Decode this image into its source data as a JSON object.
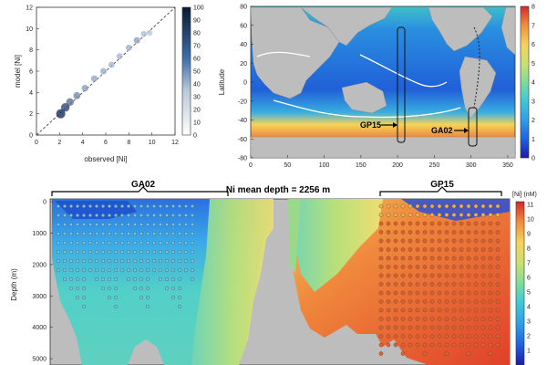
{
  "chart_data": [
    {
      "type": "scatter",
      "title": "",
      "xlabel": "observed [Ni]",
      "ylabel": "model [Ni]",
      "xlim": [
        0,
        12
      ],
      "ylim": [
        0,
        12
      ],
      "x_ticks": [
        "0",
        "2",
        "4",
        "6",
        "8",
        "10",
        "12"
      ],
      "y_ticks": [
        "0",
        "2",
        "4",
        "6",
        "8",
        "10",
        "12"
      ],
      "one_to_one_line": true,
      "colorbar_ticks": [
        "0",
        "10",
        "20",
        "30",
        "40",
        "50",
        "60",
        "70",
        "80",
        "90",
        "100"
      ],
      "colorbar_range": [
        0,
        100
      ],
      "density_points": [
        {
          "x": 2.1,
          "y": 2.0,
          "d": 100
        },
        {
          "x": 2.5,
          "y": 2.6,
          "d": 85
        },
        {
          "x": 2.9,
          "y": 3.1,
          "d": 60
        },
        {
          "x": 3.5,
          "y": 3.7,
          "d": 45
        },
        {
          "x": 4.2,
          "y": 4.4,
          "d": 35
        },
        {
          "x": 5.0,
          "y": 5.3,
          "d": 28
        },
        {
          "x": 5.8,
          "y": 6.0,
          "d": 25
        },
        {
          "x": 6.5,
          "y": 6.6,
          "d": 20
        },
        {
          "x": 7.2,
          "y": 7.4,
          "d": 18
        },
        {
          "x": 8.0,
          "y": 8.2,
          "d": 22
        },
        {
          "x": 8.7,
          "y": 8.9,
          "d": 30
        },
        {
          "x": 9.3,
          "y": 9.5,
          "d": 15
        },
        {
          "x": 9.8,
          "y": 9.6,
          "d": 8
        }
      ]
    },
    {
      "type": "heatmap",
      "title": "",
      "xlabel": "",
      "ylabel": "Latitude",
      "xlim": [
        0,
        360
      ],
      "ylim": [
        -80,
        80
      ],
      "x_ticks": [
        "0",
        "50",
        "100",
        "150",
        "200",
        "250",
        "300",
        "350"
      ],
      "y_ticks": [
        "80",
        "60",
        "40",
        "20",
        "0",
        "-20",
        "-40",
        "-60",
        "-80"
      ],
      "colorbar_ticks": [
        "8",
        "7",
        "6",
        "5",
        "4",
        "3",
        "2",
        "1",
        "0"
      ],
      "colorbar_range": [
        0,
        8
      ],
      "annotations": [
        {
          "text": "GP15",
          "lon": 210,
          "lat": -50
        },
        {
          "text": "GA02",
          "lon": 312,
          "lat": -63
        }
      ],
      "transect_boxes": [
        {
          "name": "GP15",
          "lon": [
            206,
            212
          ],
          "lat": [
            -70,
            58
          ]
        },
        {
          "name": "GA02",
          "lon": [
            307,
            316
          ],
          "lat": [
            -72,
            -50
          ]
        }
      ]
    },
    {
      "type": "heatmap",
      "title": "Ni mean depth = 2256 m",
      "xlabel": "",
      "ylabel": "Depth (m)",
      "ylim": [
        0,
        5200
      ],
      "y_ticks": [
        "0",
        "1000",
        "2000",
        "3000",
        "4000",
        "5000"
      ],
      "colorbar_label": "[Ni] (nM)",
      "colorbar_ticks": [
        "11",
        "10",
        "9",
        "8",
        "7",
        "6",
        "5",
        "4",
        "3",
        "2",
        "1"
      ],
      "colorbar_range": [
        0,
        11
      ],
      "sections": [
        {
          "name": "GA02",
          "label": "GA02"
        },
        {
          "name": "GP15",
          "label": "GP15"
        }
      ]
    }
  ]
}
